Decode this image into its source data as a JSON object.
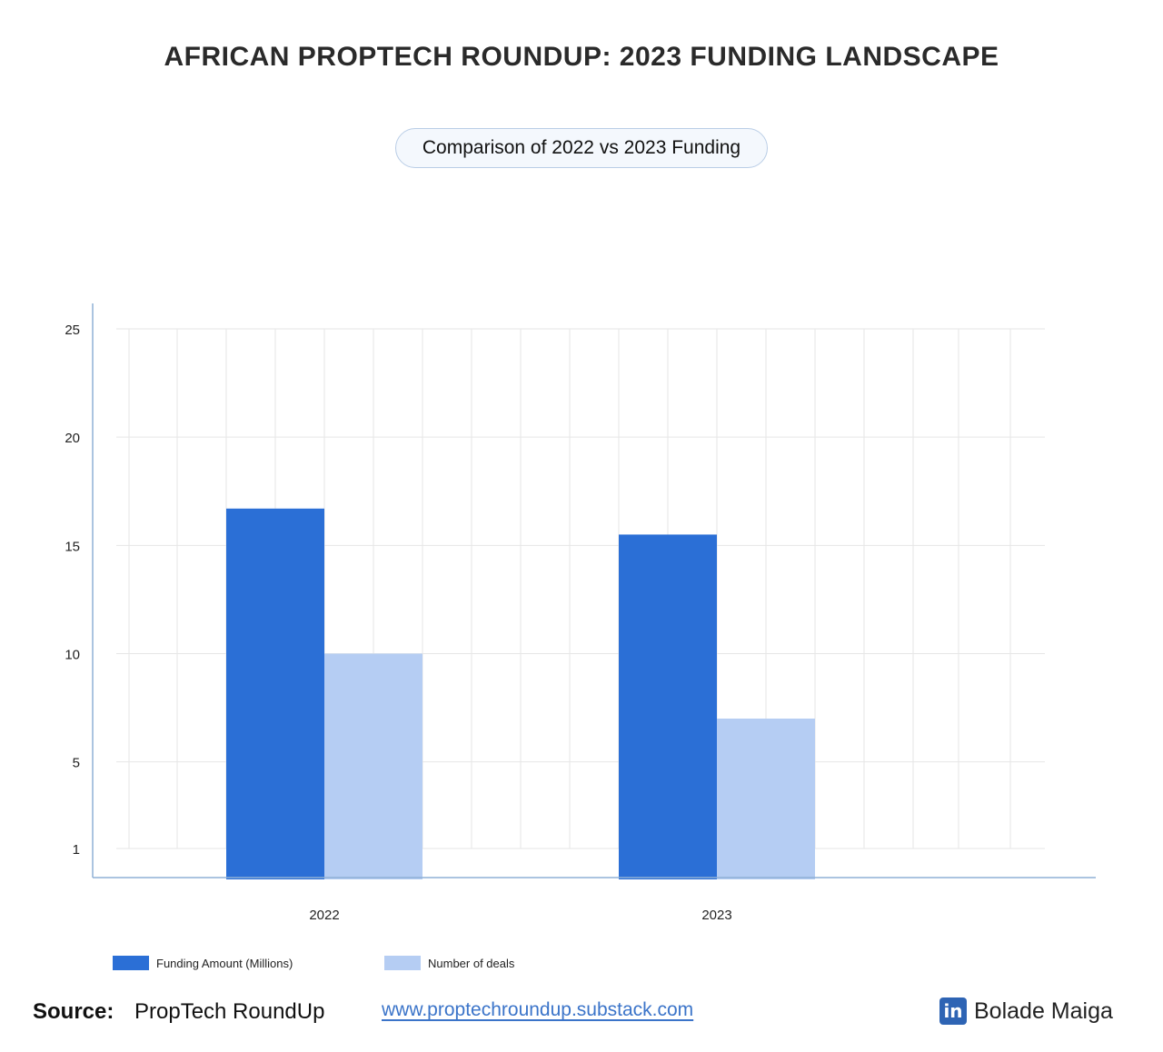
{
  "header": {
    "title": "AFRICAN PROPTECH ROUNDUP: 2023 FUNDING LANDSCAPE",
    "subtitle": "Comparison  of 2022 vs 2023 Funding"
  },
  "chart_data": {
    "type": "bar",
    "categories": [
      "2022",
      "2023"
    ],
    "series": [
      {
        "name": "Funding Amount (Millions)",
        "color": "#2b6fd6",
        "values": [
          16.7,
          15.5
        ]
      },
      {
        "name": "Number of deals",
        "color": "#b5cdf3",
        "values": [
          10,
          7
        ]
      }
    ],
    "y_ticks": [
      1,
      5,
      10,
      15,
      20,
      25
    ],
    "ylim": [
      1,
      25
    ],
    "grid": true,
    "legend_position": "bottom-left",
    "grid_color": "#e6e6e6",
    "axis_color": "#8fb0d6"
  },
  "footer": {
    "source_label": "Source:",
    "source_name": "PropTech RoundUp",
    "source_url": "www.proptechroundup.substack.com",
    "linkedin_glyph": "in",
    "author": "Bolade Maiga"
  }
}
